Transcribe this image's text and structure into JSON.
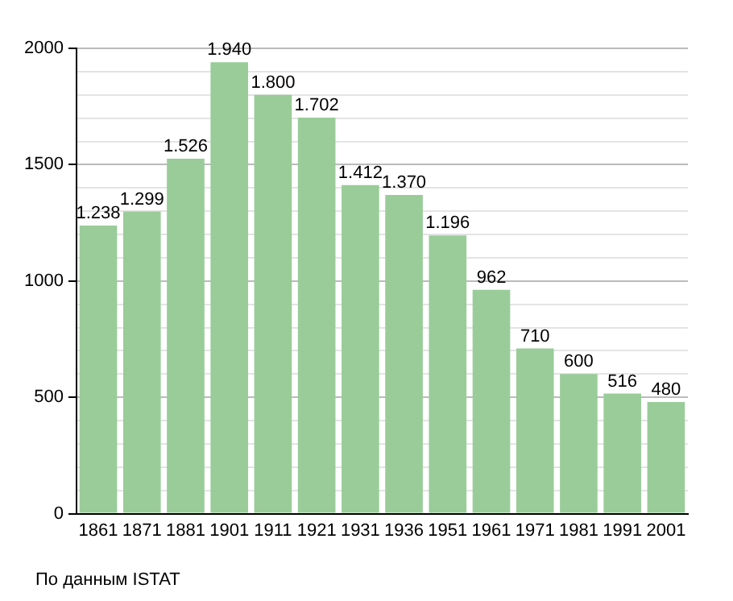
{
  "chart_data": {
    "type": "bar",
    "categories": [
      "1861",
      "1871",
      "1881",
      "1901",
      "1911",
      "1921",
      "1931",
      "1936",
      "1951",
      "1961",
      "1971",
      "1981",
      "1991",
      "2001"
    ],
    "values": [
      1238,
      1299,
      1526,
      1940,
      1800,
      1702,
      1412,
      1370,
      1196,
      962,
      710,
      600,
      516,
      480
    ],
    "value_labels": [
      "1.238",
      "1.299",
      "1.526",
      "1.940",
      "1.800",
      "1.702",
      "1.412",
      "1.370",
      "1.196",
      "962",
      "710",
      "600",
      "516",
      "480"
    ],
    "color": "#99cc99",
    "ylim": [
      0,
      2000
    ],
    "yticks": [
      0,
      {
        "value": 100,
        "label": null
      },
      {
        "value": 200,
        "label": null
      },
      {
        "value": 300,
        "label": null
      },
      {
        "value": 400,
        "label": null
      },
      500,
      {
        "value": 600,
        "label": null
      },
      {
        "value": 700,
        "label": null
      },
      {
        "value": 800,
        "label": null
      },
      {
        "value": 900,
        "label": null
      },
      1000,
      {
        "value": 1100,
        "label": null
      },
      {
        "value": 1200,
        "label": null
      },
      {
        "value": 1300,
        "label": null
      },
      {
        "value": 1400,
        "label": null
      },
      1500,
      {
        "value": 1600,
        "label": null
      },
      {
        "value": 1700,
        "label": null
      },
      {
        "value": 1800,
        "label": null
      },
      {
        "value": 1900,
        "label": null
      },
      2000
    ],
    "grid": "y",
    "legend": false,
    "annotations": [
      "По данным ISTAT"
    ]
  }
}
